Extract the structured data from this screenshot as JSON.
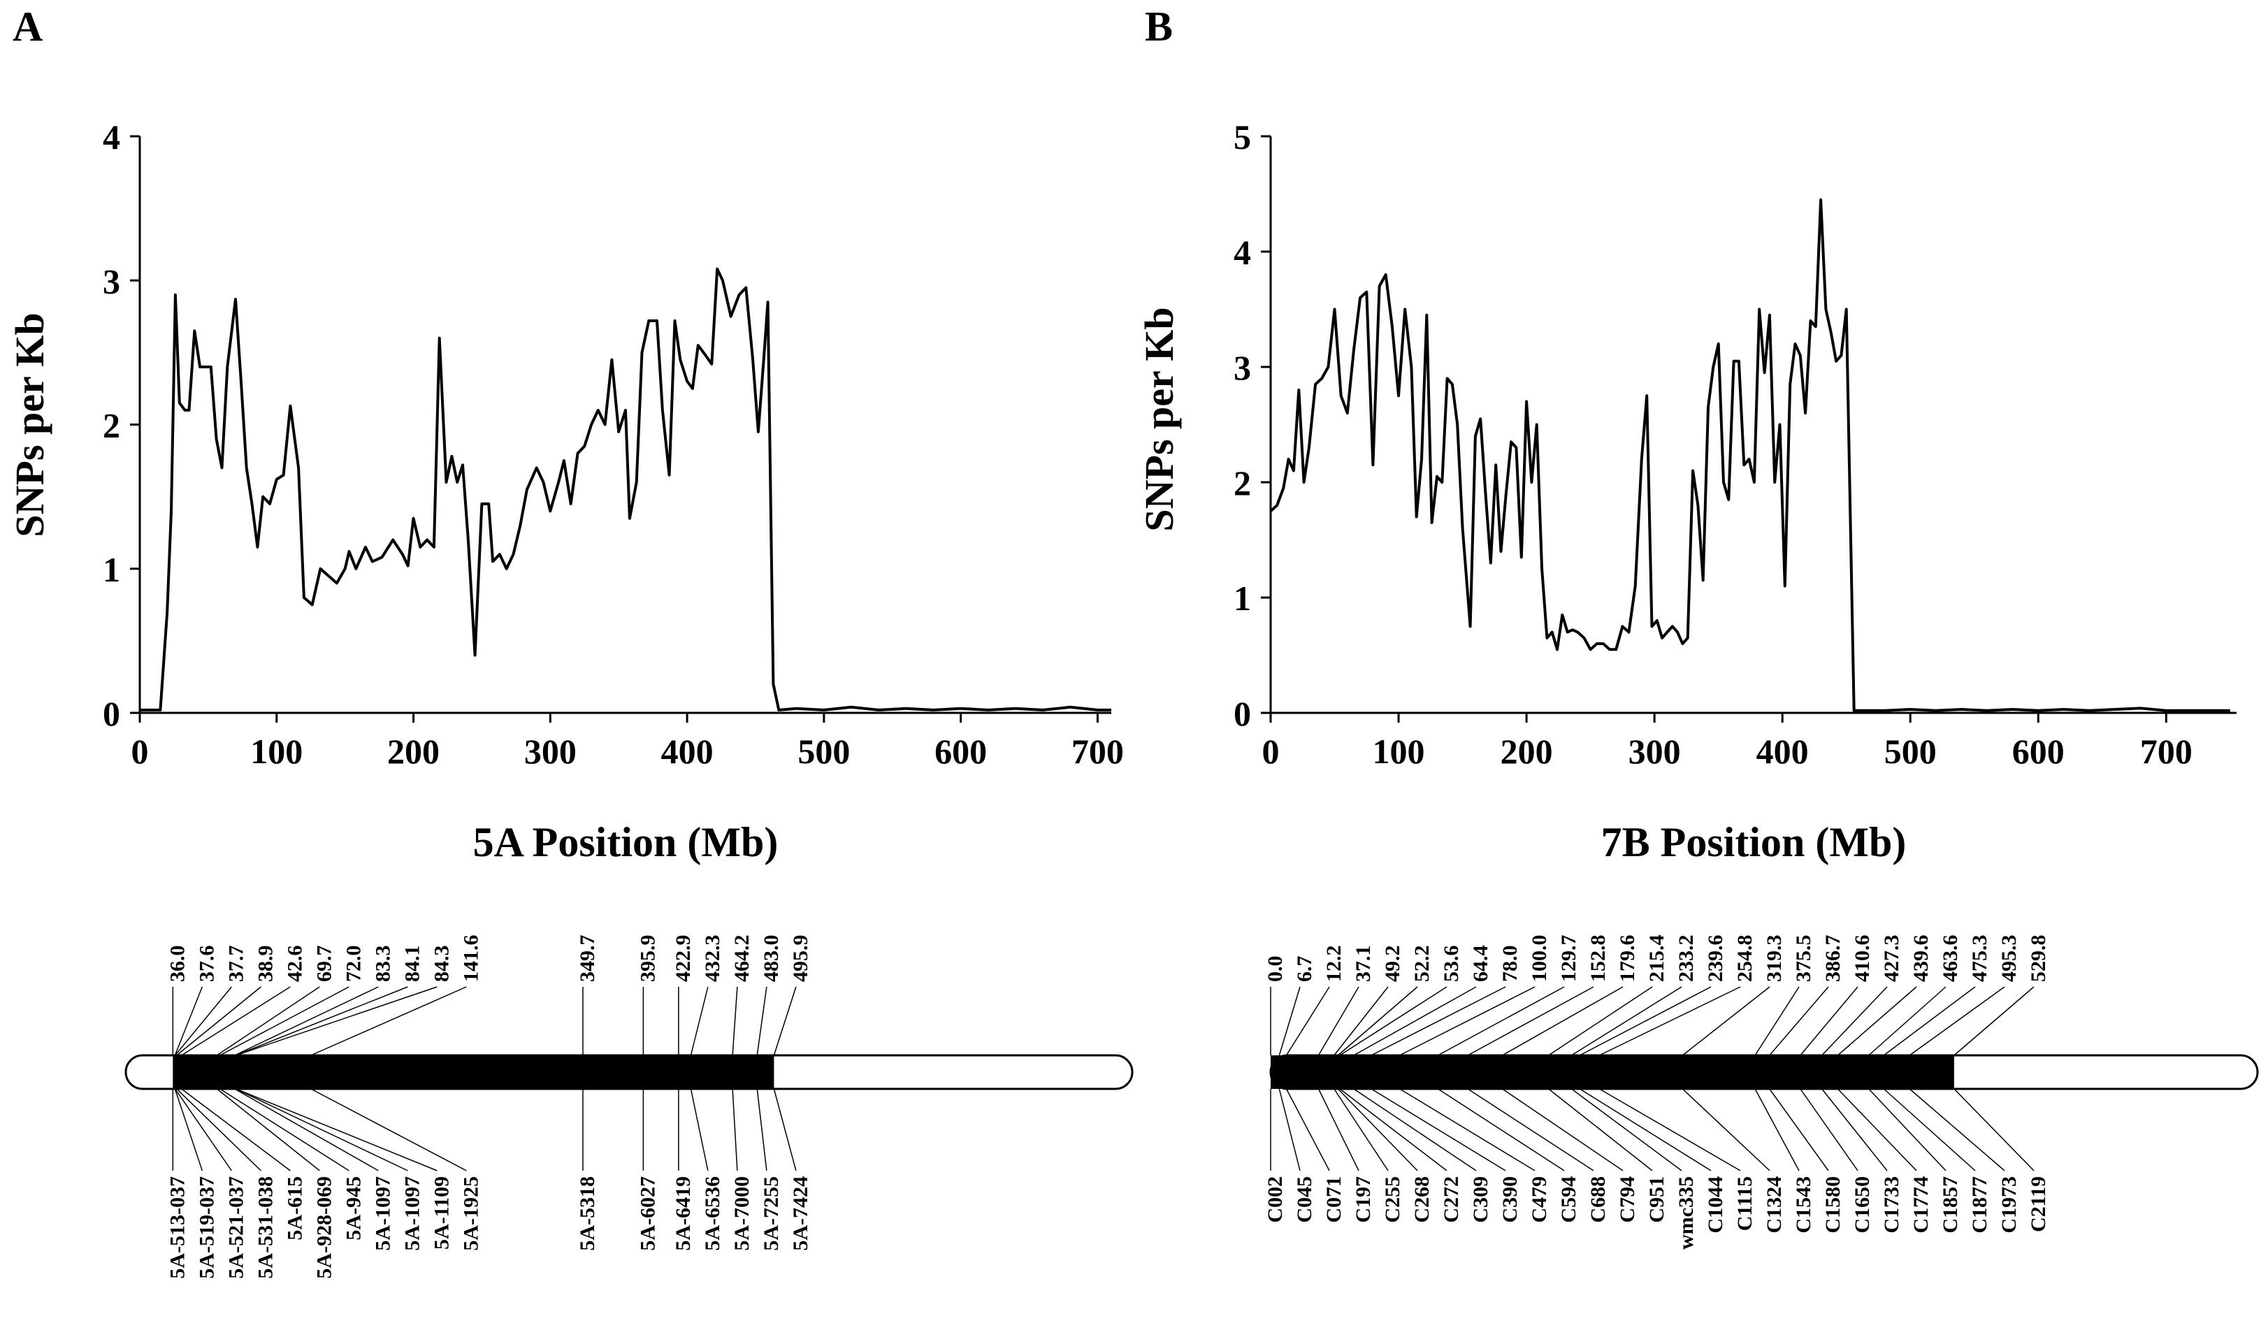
{
  "chart_data": [
    {
      "panel": "A",
      "type": "line",
      "ylabel": "SNPs per Kb",
      "xlabel": "5A Position (Mb)",
      "xlim": [
        0,
        710
      ],
      "ylim": [
        0,
        4
      ],
      "xticks": [
        0,
        100,
        200,
        300,
        400,
        500,
        600,
        700
      ],
      "yticks": [
        0,
        1,
        2,
        3,
        4
      ],
      "series": [
        {
          "name": "5A",
          "points": [
            [
              0,
              0.02
            ],
            [
              15,
              0.02
            ],
            [
              20,
              0.7
            ],
            [
              23,
              1.4
            ],
            [
              26,
              2.9
            ],
            [
              29,
              2.15
            ],
            [
              33,
              2.1
            ],
            [
              36,
              2.1
            ],
            [
              40,
              2.65
            ],
            [
              44,
              2.4
            ],
            [
              48,
              2.4
            ],
            [
              52,
              2.4
            ],
            [
              56,
              1.9
            ],
            [
              60,
              1.7
            ],
            [
              64,
              2.4
            ],
            [
              70,
              2.87
            ],
            [
              74,
              2.3
            ],
            [
              78,
              1.7
            ],
            [
              82,
              1.45
            ],
            [
              86,
              1.15
            ],
            [
              90,
              1.5
            ],
            [
              95,
              1.45
            ],
            [
              100,
              1.62
            ],
            [
              105,
              1.65
            ],
            [
              110,
              2.13
            ],
            [
              116,
              1.7
            ],
            [
              120,
              0.8
            ],
            [
              126,
              0.75
            ],
            [
              132,
              1.0
            ],
            [
              138,
              0.95
            ],
            [
              144,
              0.9
            ],
            [
              150,
              1.0
            ],
            [
              153,
              1.12
            ],
            [
              158,
              1.0
            ],
            [
              165,
              1.15
            ],
            [
              170,
              1.05
            ],
            [
              177,
              1.08
            ],
            [
              185,
              1.2
            ],
            [
              192,
              1.1
            ],
            [
              196,
              1.02
            ],
            [
              200,
              1.35
            ],
            [
              205,
              1.15
            ],
            [
              210,
              1.2
            ],
            [
              215,
              1.15
            ],
            [
              219,
              2.6
            ],
            [
              224,
              1.6
            ],
            [
              228,
              1.78
            ],
            [
              232,
              1.6
            ],
            [
              236,
              1.72
            ],
            [
              240,
              1.2
            ],
            [
              245,
              0.4
            ],
            [
              250,
              1.45
            ],
            [
              255,
              1.45
            ],
            [
              258,
              1.05
            ],
            [
              263,
              1.1
            ],
            [
              268,
              1.0
            ],
            [
              273,
              1.1
            ],
            [
              278,
              1.3
            ],
            [
              283,
              1.55
            ],
            [
              290,
              1.7
            ],
            [
              295,
              1.6
            ],
            [
              300,
              1.4
            ],
            [
              306,
              1.6
            ],
            [
              310,
              1.75
            ],
            [
              315,
              1.45
            ],
            [
              320,
              1.8
            ],
            [
              325,
              1.85
            ],
            [
              330,
              2.0
            ],
            [
              335,
              2.1
            ],
            [
              340,
              2.0
            ],
            [
              345,
              2.45
            ],
            [
              350,
              1.95
            ],
            [
              355,
              2.1
            ],
            [
              358,
              1.35
            ],
            [
              363,
              1.6
            ],
            [
              367,
              2.5
            ],
            [
              372,
              2.72
            ],
            [
              378,
              2.72
            ],
            [
              382,
              2.1
            ],
            [
              387,
              1.65
            ],
            [
              391,
              2.72
            ],
            [
              395,
              2.45
            ],
            [
              400,
              2.3
            ],
            [
              404,
              2.25
            ],
            [
              408,
              2.55
            ],
            [
              412,
              2.5
            ],
            [
              418,
              2.42
            ],
            [
              422,
              3.08
            ],
            [
              426,
              3.0
            ],
            [
              432,
              2.75
            ],
            [
              438,
              2.9
            ],
            [
              443,
              2.95
            ],
            [
              448,
              2.45
            ],
            [
              452,
              1.95
            ],
            [
              456,
              2.45
            ],
            [
              459,
              2.85
            ],
            [
              463,
              0.2
            ],
            [
              467,
              0.02
            ],
            [
              480,
              0.03
            ],
            [
              500,
              0.02
            ],
            [
              520,
              0.04
            ],
            [
              540,
              0.02
            ],
            [
              560,
              0.03
            ],
            [
              580,
              0.02
            ],
            [
              600,
              0.03
            ],
            [
              620,
              0.02
            ],
            [
              640,
              0.03
            ],
            [
              660,
              0.02
            ],
            [
              680,
              0.04
            ],
            [
              700,
              0.02
            ],
            [
              710,
              0.02
            ]
          ]
        }
      ],
      "map": {
        "top_positions": [
          "36.0",
          "37.6",
          "37.7",
          "38.9",
          "42.6",
          "69.7",
          "72.0",
          "83.3",
          "84.1",
          "84.3",
          "141.6",
          "349.7",
          "395.9",
          "422.9",
          "432.3",
          "464.2",
          "483.0",
          "495.9"
        ],
        "bottom_markers": [
          "5A-513-037",
          "5A-519-037",
          "5A-521-037",
          "5A-531-038",
          "5A-615",
          "5A-928-069",
          "5A-945",
          "5A-1097",
          "5A-1097",
          "5A-1109",
          "5A-1925",
          "5A-5318",
          "5A-6027",
          "5A-6419",
          "5A-6536",
          "5A-7000",
          "5A-7255",
          "5A-7424"
        ],
        "map_positions": [
          36.0,
          37.6,
          37.7,
          38.9,
          42.6,
          69.7,
          72.0,
          83.3,
          84.1,
          84.3,
          141.6,
          349.7,
          395.9,
          422.9,
          432.3,
          464.2,
          483.0,
          495.9
        ],
        "chromosome_length": 770,
        "black_start": 36.0,
        "black_end": 495.9
      }
    },
    {
      "panel": "B",
      "type": "line",
      "ylabel": "SNPs per Kb",
      "xlabel": "7B Position (Mb)",
      "xlim": [
        0,
        755
      ],
      "ylim": [
        0,
        5
      ],
      "xticks": [
        0,
        100,
        200,
        300,
        400,
        500,
        600,
        700
      ],
      "yticks": [
        0,
        1,
        2,
        3,
        4,
        5
      ],
      "series": [
        {
          "name": "7B",
          "points": [
            [
              0,
              1.75
            ],
            [
              5,
              1.8
            ],
            [
              10,
              1.95
            ],
            [
              14,
              2.2
            ],
            [
              18,
              2.1
            ],
            [
              22,
              2.8
            ],
            [
              26,
              2.0
            ],
            [
              30,
              2.3
            ],
            [
              35,
              2.85
            ],
            [
              40,
              2.9
            ],
            [
              45,
              3.0
            ],
            [
              50,
              3.5
            ],
            [
              55,
              2.75
            ],
            [
              60,
              2.6
            ],
            [
              65,
              3.15
            ],
            [
              70,
              3.6
            ],
            [
              75,
              3.65
            ],
            [
              80,
              2.15
            ],
            [
              85,
              3.7
            ],
            [
              90,
              3.8
            ],
            [
              95,
              3.35
            ],
            [
              100,
              2.75
            ],
            [
              105,
              3.5
            ],
            [
              110,
              3.0
            ],
            [
              114,
              1.7
            ],
            [
              118,
              2.2
            ],
            [
              122,
              3.45
            ],
            [
              126,
              1.65
            ],
            [
              130,
              2.05
            ],
            [
              134,
              2.0
            ],
            [
              138,
              2.9
            ],
            [
              142,
              2.85
            ],
            [
              146,
              2.5
            ],
            [
              150,
              1.6
            ],
            [
              156,
              0.75
            ],
            [
              160,
              2.4
            ],
            [
              164,
              2.55
            ],
            [
              168,
              1.9
            ],
            [
              172,
              1.3
            ],
            [
              176,
              2.15
            ],
            [
              180,
              1.4
            ],
            [
              184,
              1.9
            ],
            [
              188,
              2.35
            ],
            [
              192,
              2.3
            ],
            [
              196,
              1.35
            ],
            [
              200,
              2.7
            ],
            [
              204,
              2.0
            ],
            [
              208,
              2.5
            ],
            [
              212,
              1.25
            ],
            [
              216,
              0.65
            ],
            [
              220,
              0.7
            ],
            [
              224,
              0.55
            ],
            [
              228,
              0.85
            ],
            [
              232,
              0.7
            ],
            [
              236,
              0.72
            ],
            [
              240,
              0.7
            ],
            [
              245,
              0.65
            ],
            [
              250,
              0.55
            ],
            [
              255,
              0.6
            ],
            [
              260,
              0.6
            ],
            [
              265,
              0.55
            ],
            [
              270,
              0.55
            ],
            [
              275,
              0.75
            ],
            [
              280,
              0.7
            ],
            [
              285,
              1.1
            ],
            [
              290,
              2.2
            ],
            [
              294,
              2.75
            ],
            [
              298,
              0.75
            ],
            [
              302,
              0.8
            ],
            [
              306,
              0.65
            ],
            [
              310,
              0.7
            ],
            [
              314,
              0.75
            ],
            [
              318,
              0.7
            ],
            [
              322,
              0.6
            ],
            [
              326,
              0.65
            ],
            [
              330,
              2.1
            ],
            [
              334,
              1.8
            ],
            [
              338,
              1.15
            ],
            [
              342,
              2.65
            ],
            [
              346,
              3.0
            ],
            [
              350,
              3.2
            ],
            [
              354,
              2.0
            ],
            [
              358,
              1.85
            ],
            [
              362,
              3.05
            ],
            [
              366,
              3.05
            ],
            [
              370,
              2.15
            ],
            [
              374,
              2.2
            ],
            [
              378,
              2.0
            ],
            [
              382,
              3.5
            ],
            [
              386,
              2.95
            ],
            [
              390,
              3.45
            ],
            [
              394,
              2.0
            ],
            [
              398,
              2.5
            ],
            [
              402,
              1.1
            ],
            [
              406,
              2.85
            ],
            [
              410,
              3.2
            ],
            [
              414,
              3.1
            ],
            [
              418,
              2.6
            ],
            [
              422,
              3.4
            ],
            [
              426,
              3.35
            ],
            [
              430,
              4.45
            ],
            [
              434,
              3.5
            ],
            [
              438,
              3.3
            ],
            [
              442,
              3.05
            ],
            [
              446,
              3.1
            ],
            [
              450,
              3.5
            ],
            [
              456,
              0.02
            ],
            [
              480,
              0.02
            ],
            [
              500,
              0.03
            ],
            [
              520,
              0.02
            ],
            [
              540,
              0.03
            ],
            [
              560,
              0.02
            ],
            [
              580,
              0.03
            ],
            [
              600,
              0.02
            ],
            [
              620,
              0.03
            ],
            [
              640,
              0.02
            ],
            [
              660,
              0.03
            ],
            [
              680,
              0.04
            ],
            [
              700,
              0.02
            ],
            [
              720,
              0.02
            ],
            [
              740,
              0.02
            ],
            [
              750,
              0.02
            ]
          ]
        }
      ],
      "map": {
        "top_positions": [
          "0.0",
          "6.7",
          "12.2",
          "37.1",
          "49.2",
          "52.2",
          "53.6",
          "64.4",
          "78.0",
          "100.0",
          "129.7",
          "152.8",
          "179.6",
          "215.4",
          "233.2",
          "239.6",
          "254.8",
          "319.3",
          "375.5",
          "386.7",
          "410.6",
          "427.3",
          "439.6",
          "463.6",
          "475.3",
          "495.3",
          "529.8"
        ],
        "bottom_markers": [
          "C002",
          "C045",
          "C071",
          "C197",
          "C255",
          "C268",
          "C272",
          "C309",
          "C390",
          "C479",
          "C594",
          "C688",
          "C794",
          "C951",
          "wmc335",
          "C1044",
          "C1115",
          "C1324",
          "C1543",
          "C1580",
          "C1650",
          "C1733",
          "C1774",
          "C1857",
          "C1877",
          "C1973",
          "C2119"
        ],
        "map_positions": [
          0.0,
          6.7,
          12.2,
          37.1,
          49.2,
          52.2,
          53.6,
          64.4,
          78.0,
          100.0,
          129.7,
          152.8,
          179.6,
          215.4,
          233.2,
          239.6,
          254.8,
          319.3,
          375.5,
          386.7,
          410.6,
          427.3,
          439.6,
          463.6,
          475.3,
          495.3,
          529.8
        ],
        "chromosome_length": 765,
        "black_start": 0.0,
        "black_end": 529.8
      }
    }
  ]
}
